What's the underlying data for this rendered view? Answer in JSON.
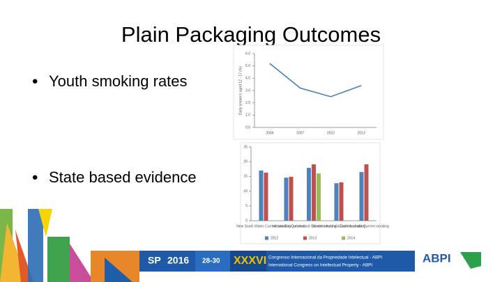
{
  "slide": {
    "title": "Plain Packaging Outcomes",
    "bullets": [
      "Youth smoking rates",
      "State based evidence"
    ]
  },
  "chart_data": [
    {
      "type": "line",
      "y_label": "Daily smokers aged 12 - 17 (%)",
      "categories": [
        "2004",
        "2007",
        "2010",
        "2013"
      ],
      "series": [
        {
          "color": "#4a7ebb",
          "values": [
            5.2,
            3.2,
            2.5,
            3.4
          ]
        }
      ],
      "ylim": [
        0,
        6
      ],
      "yticks": [
        {
          "value": 0,
          "label": "0.0"
        },
        {
          "value": 1,
          "label": "1.0"
        },
        {
          "value": 2,
          "label": "2.0"
        },
        {
          "value": 3,
          "label": "3.0"
        },
        {
          "value": 4,
          "label": "4.0"
        },
        {
          "value": 5,
          "label": "5.0"
        },
        {
          "value": 6,
          "label": "6.0"
        }
      ]
    },
    {
      "type": "bar",
      "categories": [
        "New South Wales Current smoking",
        "Victoria Ever smoked",
        "Queensland Current smoking",
        "Western Australia Current smoking",
        "South Australia Current smoking"
      ],
      "series": [
        {
          "name": "2012",
          "color": "#4f81bd",
          "values": [
            17.0,
            14.6,
            17.9,
            12.7,
            16.5
          ]
        },
        {
          "name": "2013",
          "color": "#c0504d",
          "values": [
            16.3,
            14.9,
            19.1,
            13.0,
            19.1
          ]
        },
        {
          "name": "2014",
          "color": "#9bbb59",
          "values": [
            null,
            null,
            16.0,
            null,
            null
          ]
        }
      ],
      "ylim": [
        0,
        25
      ],
      "yticks": [
        0,
        5,
        10,
        15,
        20,
        25
      ]
    }
  ],
  "footer": {
    "city": "SP",
    "year": "2016",
    "dates": "28-30",
    "edition": "XXXVI",
    "line1": "Congresso Internacional da Propriedade Intelectual - ABPI",
    "line2": "International Congress on Intellectual Property - ABPI",
    "logo": "ABPI"
  }
}
